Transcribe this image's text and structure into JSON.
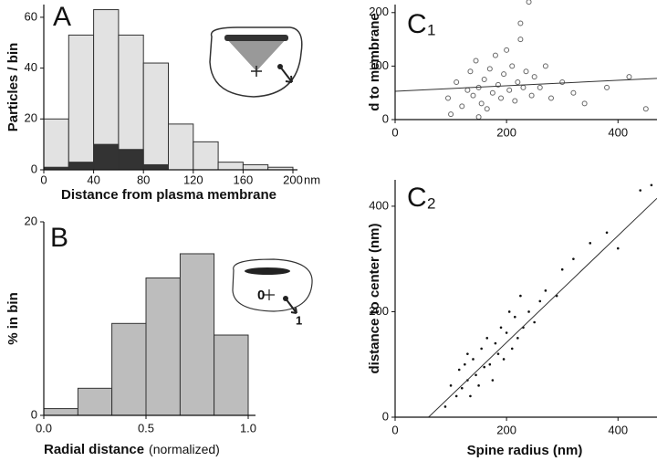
{
  "chart_data": [
    {
      "type": "histogram",
      "panel": "A",
      "ylabel": "Particles / bin",
      "xlabel": "Distance from plasma membrane",
      "xunit": "nm",
      "bins": [
        0,
        20,
        40,
        60,
        80,
        100,
        120,
        140,
        160,
        180,
        200
      ],
      "series": [
        {
          "color": "#e2e2e2",
          "values": [
            20,
            53,
            63,
            53,
            42,
            18,
            11,
            3,
            2,
            1
          ]
        },
        {
          "color": "#333333",
          "values": [
            1,
            3,
            10,
            8,
            2,
            0,
            0,
            0,
            0,
            0
          ]
        }
      ],
      "xlim": [
        0,
        200
      ],
      "xticks": [
        0,
        40,
        80,
        120,
        160,
        200
      ],
      "ylim": [
        0,
        65
      ],
      "yticks": [
        0,
        20,
        40,
        60
      ]
    },
    {
      "type": "histogram",
      "panel": "B",
      "ylabel": "% in bin",
      "xlabel": "Radial distance",
      "xlabel_note": "(normalized)",
      "annotations": [
        "0",
        "1"
      ],
      "bins": [
        0,
        0.167,
        0.333,
        0.5,
        0.667,
        0.833,
        1.0
      ],
      "series": [
        {
          "color": "#bdbdbd",
          "values": [
            0.7,
            2.8,
            9.5,
            14.2,
            16.7,
            8.3
          ]
        }
      ],
      "xlim": [
        0,
        1
      ],
      "xticks": [
        {
          "value": 0,
          "label": "0.0"
        },
        0.5,
        {
          "value": 1,
          "label": "1.0"
        }
      ],
      "ylim": [
        0,
        20
      ],
      "yticks": [
        0,
        20
      ]
    },
    {
      "type": "scatter",
      "panel": "C",
      "panel_sub": "1",
      "ylabel": "d to membrane",
      "marker": "open",
      "color": "#666666",
      "x": [
        95,
        110,
        120,
        130,
        135,
        140,
        145,
        150,
        155,
        160,
        165,
        170,
        175,
        180,
        185,
        190,
        195,
        200,
        205,
        210,
        215,
        220,
        225,
        230,
        235,
        240,
        245,
        250,
        260,
        270,
        280,
        300,
        320,
        340,
        380,
        420,
        450,
        100,
        150,
        225
      ],
      "values": [
        40,
        70,
        25,
        55,
        90,
        45,
        110,
        60,
        30,
        75,
        20,
        95,
        50,
        120,
        65,
        40,
        85,
        130,
        55,
        100,
        35,
        70,
        150,
        60,
        90,
        220,
        45,
        80,
        60,
        100,
        40,
        70,
        50,
        30,
        60,
        80,
        20,
        10,
        5,
        180
      ],
      "trend": {
        "x": [
          0,
          470
        ],
        "values": [
          53,
          77
        ]
      },
      "xlim": [
        0,
        470
      ],
      "xticks": [
        0,
        200,
        400
      ],
      "ylim": [
        0,
        215
      ],
      "yticks": [
        0,
        100,
        200
      ]
    },
    {
      "type": "scatter",
      "panel": "C",
      "panel_sub": "2",
      "ylabel": "distance to center (nm)",
      "xlabel": "Spine radius (nm)",
      "marker": "dot",
      "color": "#111111",
      "x": [
        90,
        100,
        110,
        115,
        120,
        125,
        130,
        135,
        140,
        145,
        150,
        155,
        160,
        165,
        170,
        175,
        180,
        185,
        190,
        195,
        200,
        205,
        210,
        215,
        220,
        225,
        230,
        240,
        250,
        260,
        270,
        290,
        300,
        320,
        350,
        380,
        400,
        440,
        460,
        130
      ],
      "values": [
        20,
        60,
        40,
        90,
        55,
        100,
        70,
        40,
        110,
        80,
        60,
        130,
        95,
        150,
        100,
        70,
        140,
        120,
        170,
        110,
        160,
        200,
        130,
        190,
        150,
        230,
        170,
        200,
        180,
        220,
        240,
        230,
        280,
        300,
        330,
        350,
        320,
        430,
        440,
        120
      ],
      "trend": {
        "x": [
          60,
          470
        ],
        "values": [
          0,
          415
        ]
      },
      "xlim": [
        0,
        470
      ],
      "xticks": [
        0,
        200,
        400
      ],
      "ylim": [
        0,
        450
      ],
      "yticks": [
        0,
        200,
        400
      ]
    }
  ]
}
